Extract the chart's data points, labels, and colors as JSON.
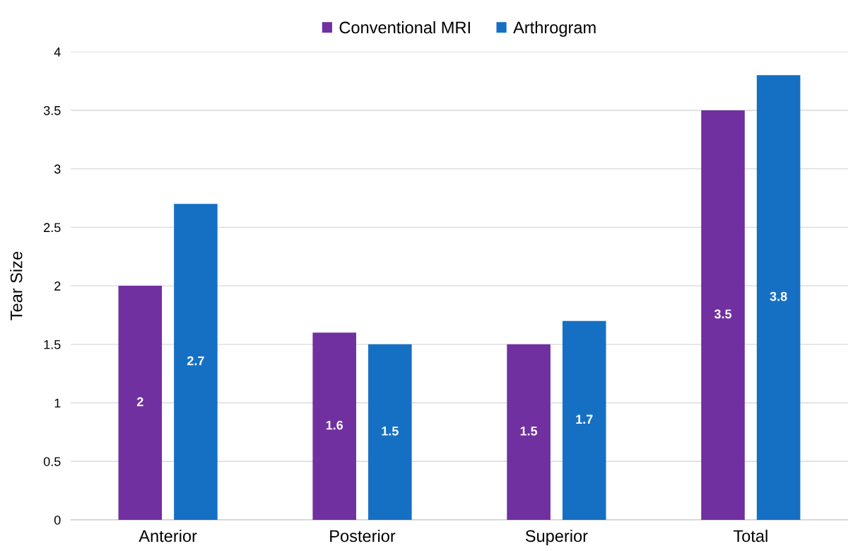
{
  "chart_data": {
    "type": "bar",
    "ylabel": "Tear Size",
    "categories": [
      "Anterior",
      "Posterior",
      "Superior",
      "Total"
    ],
    "series": [
      {
        "name": "Conventional MRI",
        "color": "#7030a0",
        "values": [
          2,
          1.6,
          1.5,
          3.5
        ]
      },
      {
        "name": "Arthrogram",
        "color": "#1570c4",
        "values": [
          2.7,
          1.5,
          1.7,
          3.8
        ]
      }
    ],
    "ylim": [
      0,
      4
    ],
    "yticks": [
      0,
      0.5,
      1,
      1.5,
      2,
      2.5,
      3,
      3.5,
      4
    ],
    "grid": "y",
    "legend": "top",
    "data_labels": true
  }
}
